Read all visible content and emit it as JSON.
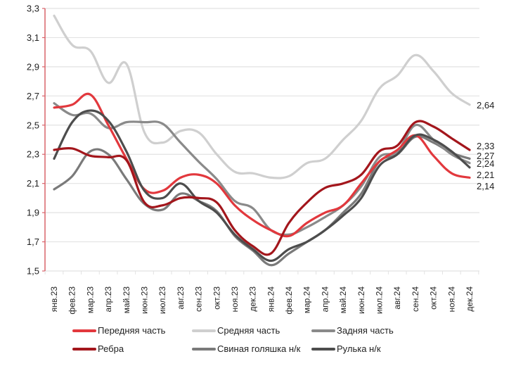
{
  "chart_data": {
    "type": "line",
    "title": "",
    "xlabel": "",
    "ylabel": "",
    "ylim": [
      1.5,
      3.3
    ],
    "yticks": [
      "3,3",
      "3,1",
      "2,9",
      "2,7",
      "2,5",
      "2,3",
      "2,1",
      "1,9",
      "1,7",
      "1,5"
    ],
    "ytick_values": [
      3.3,
      3.1,
      2.9,
      2.7,
      2.5,
      2.3,
      2.1,
      1.9,
      1.7,
      1.5
    ],
    "grid": true,
    "legend_position": "bottom",
    "categories": [
      "янв.23",
      "фев.23",
      "мар.23",
      "апр.23",
      "май.23",
      "июн.23",
      "июл.23",
      "авг.23",
      "сен.23",
      "окт.23",
      "ноя.23",
      "дек.23",
      "янв.24",
      "фев.24",
      "мар.24",
      "апр.24",
      "май.24",
      "июн.24",
      "июл.24",
      "авг.24",
      "сен.24",
      "окт.24",
      "ноя.24",
      "дек.24"
    ],
    "series": [
      {
        "name": "Передняя часть",
        "color": "#e2383d",
        "values": [
          2.62,
          2.64,
          2.71,
          2.5,
          2.27,
          2.06,
          2.05,
          2.14,
          2.16,
          2.1,
          1.95,
          1.85,
          1.78,
          1.74,
          1.83,
          1.9,
          1.95,
          2.1,
          2.25,
          2.33,
          2.43,
          2.29,
          2.17,
          2.14
        ]
      },
      {
        "name": "Средняя часть",
        "color": "#cfcfcf",
        "values": [
          3.25,
          3.05,
          3.01,
          2.79,
          2.92,
          2.45,
          2.38,
          2.46,
          2.45,
          2.3,
          2.18,
          2.17,
          2.14,
          2.15,
          2.24,
          2.27,
          2.4,
          2.53,
          2.75,
          2.84,
          2.98,
          2.87,
          2.72,
          2.64
        ]
      },
      {
        "name": "Задняя часть",
        "color": "#8a8a8a",
        "values": [
          2.65,
          2.57,
          2.58,
          2.48,
          2.52,
          2.52,
          2.51,
          2.38,
          2.25,
          2.13,
          1.98,
          1.93,
          1.78,
          1.75,
          1.8,
          1.87,
          1.95,
          2.08,
          2.28,
          2.32,
          2.5,
          2.4,
          2.3,
          2.24
        ]
      },
      {
        "name": "Ребра",
        "color": "#a3161c",
        "values": [
          2.33,
          2.34,
          2.29,
          2.28,
          2.26,
          1.97,
          1.95,
          2.0,
          2.0,
          1.97,
          1.78,
          1.67,
          1.62,
          1.83,
          1.97,
          2.07,
          2.1,
          2.16,
          2.32,
          2.36,
          2.52,
          2.49,
          2.41,
          2.33
        ]
      },
      {
        "name": "Свиная голяшка н/к",
        "color": "#7a7a7a",
        "values": [
          2.06,
          2.15,
          2.32,
          2.3,
          2.13,
          1.96,
          1.92,
          2.03,
          1.98,
          1.91,
          1.74,
          1.64,
          1.54,
          1.62,
          1.7,
          1.78,
          1.9,
          2.03,
          2.25,
          2.3,
          2.42,
          2.38,
          2.31,
          2.27
        ]
      },
      {
        "name": "Рулька н/к",
        "color": "#4d4d4d",
        "values": [
          2.27,
          2.52,
          2.6,
          2.53,
          2.32,
          2.05,
          2.0,
          2.1,
          1.98,
          1.9,
          1.75,
          1.65,
          1.57,
          1.65,
          1.7,
          1.78,
          1.88,
          2.0,
          2.22,
          2.3,
          2.43,
          2.4,
          2.32,
          2.21
        ]
      }
    ],
    "end_labels": [
      {
        "text": "2,64",
        "value": 2.64
      },
      {
        "text": "2,33",
        "value": 2.33
      },
      {
        "text": "2,27",
        "value": 2.27
      },
      {
        "text": "2,24",
        "value": 2.24
      },
      {
        "text": "2,21",
        "value": 2.21
      },
      {
        "text": "2,14",
        "value": 2.14
      }
    ]
  },
  "legend": {
    "items": [
      {
        "label": "Передняя часть",
        "color": "#e2383d"
      },
      {
        "label": "Средняя часть",
        "color": "#cfcfcf"
      },
      {
        "label": "Задняя часть",
        "color": "#8a8a8a"
      },
      {
        "label": "Ребра",
        "color": "#a3161c"
      },
      {
        "label": "Свиная голяшка н/к",
        "color": "#7a7a7a"
      },
      {
        "label": "Рулька н/к",
        "color": "#4d4d4d"
      }
    ]
  },
  "colors": {
    "axis": "#d9636a",
    "grid": "#e2e2e2"
  }
}
